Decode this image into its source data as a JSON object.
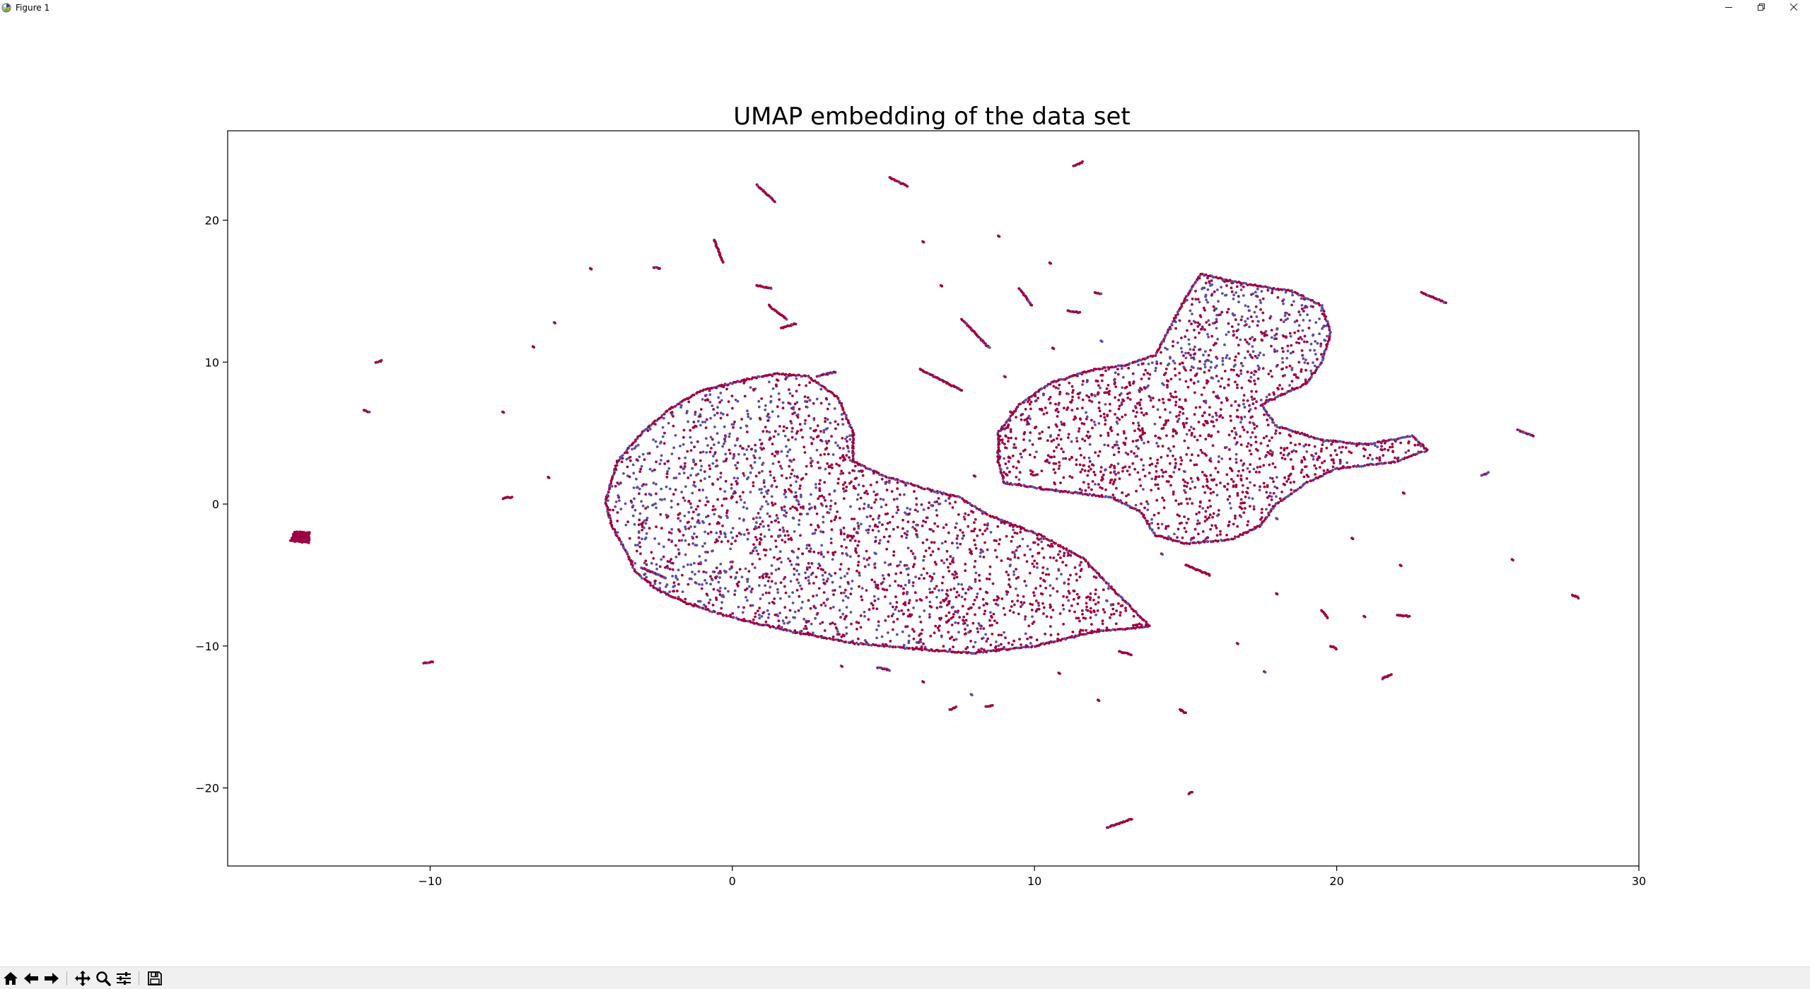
{
  "window": {
    "title": "Figure 1",
    "icons": {
      "app": "matplotlib-icon",
      "minimize": "minimize-icon",
      "restore": "restore-icon",
      "close": "close-icon"
    }
  },
  "toolbar": {
    "tools": [
      {
        "name": "home",
        "icon": "home-icon"
      },
      {
        "name": "back",
        "icon": "arrow-left-icon"
      },
      {
        "name": "forward",
        "icon": "arrow-right-icon"
      },
      {
        "name": "pan",
        "icon": "move-icon"
      },
      {
        "name": "zoom",
        "icon": "magnifier-icon"
      },
      {
        "name": "configure-subplots",
        "icon": "sliders-icon"
      },
      {
        "name": "save",
        "icon": "floppy-disk-icon"
      }
    ]
  },
  "chart_data": {
    "type": "scatter",
    "title": "UMAP embedding of the data set",
    "xlabel": "",
    "ylabel": "",
    "xlim": [
      -16.7,
      30
    ],
    "ylim": [
      -25.5,
      26.3
    ],
    "xticks": [
      -10,
      0,
      10,
      20,
      30
    ],
    "yticks": [
      -20,
      -10,
      0,
      10,
      20
    ],
    "xtick_labels": [
      "−10",
      "0",
      "10",
      "20",
      "30"
    ],
    "ytick_labels": [
      "−20",
      "−10",
      "0",
      "10",
      "20"
    ],
    "grid": false,
    "legend": "none",
    "colors": {
      "class_a": "#9e0142",
      "class_b": "#5e4fa2"
    },
    "clusters": [
      {
        "name": "left-crescent",
        "color_mix": 0.72,
        "points": [
          [
            -4.2,
            0.2
          ],
          [
            -3.8,
            3.0
          ],
          [
            -3.0,
            5.0
          ],
          [
            -2.0,
            6.8
          ],
          [
            -1.0,
            8.0
          ],
          [
            0.5,
            8.8
          ],
          [
            1.5,
            9.2
          ],
          [
            2.5,
            9.0
          ],
          [
            3.5,
            7.5
          ],
          [
            4.0,
            5.0
          ],
          [
            4.0,
            3.0
          ],
          [
            5.0,
            2.0
          ],
          [
            6.5,
            1.0
          ],
          [
            7.5,
            0.5
          ],
          [
            8.5,
            -0.8
          ],
          [
            10.2,
            -2.2
          ],
          [
            11.6,
            -3.8
          ],
          [
            12.6,
            -6.0
          ],
          [
            13.8,
            -8.6
          ],
          [
            12.0,
            -9.0
          ],
          [
            10.0,
            -10.0
          ],
          [
            8.0,
            -10.5
          ],
          [
            6.0,
            -10.2
          ],
          [
            4.0,
            -9.8
          ],
          [
            2.0,
            -9.0
          ],
          [
            0.0,
            -8.0
          ],
          [
            -1.5,
            -7.0
          ],
          [
            -2.5,
            -6.0
          ],
          [
            -3.2,
            -4.8
          ],
          [
            -3.6,
            -3.0
          ],
          [
            -4.0,
            -1.5
          ]
        ],
        "fill_density": 0.00034
      },
      {
        "name": "right-cluster",
        "color_mix": 0.62,
        "points": [
          [
            8.8,
            5.0
          ],
          [
            9.5,
            7.0
          ],
          [
            10.5,
            8.5
          ],
          [
            12.0,
            9.5
          ],
          [
            13.0,
            9.8
          ],
          [
            14.0,
            10.5
          ],
          [
            14.5,
            12.5
          ],
          [
            15.0,
            14.5
          ],
          [
            15.5,
            16.2
          ],
          [
            17.0,
            15.5
          ],
          [
            18.5,
            15.0
          ],
          [
            19.5,
            14.0
          ],
          [
            19.8,
            12.0
          ],
          [
            19.5,
            10.0
          ],
          [
            19.0,
            8.5
          ],
          [
            17.5,
            7.0
          ],
          [
            18.0,
            5.5
          ],
          [
            19.5,
            4.5
          ],
          [
            21.0,
            4.2
          ],
          [
            22.5,
            4.8
          ],
          [
            23.0,
            3.8
          ],
          [
            22.0,
            3.0
          ],
          [
            20.0,
            2.5
          ],
          [
            19.0,
            1.5
          ],
          [
            18.0,
            0.0
          ],
          [
            17.5,
            -1.5
          ],
          [
            16.5,
            -2.5
          ],
          [
            15.0,
            -2.8
          ],
          [
            14.0,
            -2.2
          ],
          [
            13.5,
            -0.5
          ],
          [
            12.5,
            0.5
          ],
          [
            10.5,
            1.0
          ],
          [
            9.0,
            1.5
          ],
          [
            8.8,
            3.0
          ]
        ],
        "fill_density": 0.00036
      },
      {
        "name": "far-left-blob",
        "color_mix": 0.95,
        "points": [
          [
            -14.5,
            -2.0
          ],
          [
            -14.0,
            -2.0
          ],
          [
            -14.0,
            -2.7
          ],
          [
            -14.6,
            -2.6
          ]
        ],
        "fill_density": 0.02
      }
    ],
    "outlier_segments": [
      [
        [
          0.8,
          22.5
        ],
        [
          1.4,
          21.3
        ],
        0.9
      ],
      [
        [
          5.2,
          23.0
        ],
        [
          5.8,
          22.4
        ],
        0.9
      ],
      [
        [
          11.3,
          23.8
        ],
        [
          11.6,
          24.1
        ],
        0.9
      ],
      [
        [
          -0.6,
          18.6
        ],
        [
          -0.3,
          17.0
        ],
        0.9
      ],
      [
        [
          0.8,
          15.4
        ],
        [
          1.3,
          15.2
        ],
        0.9
      ],
      [
        [
          1.2,
          14.0
        ],
        [
          1.8,
          13.0
        ],
        0.9
      ],
      [
        [
          1.6,
          12.4
        ],
        [
          2.1,
          12.7
        ],
        0.9
      ],
      [
        [
          -2.6,
          16.7
        ],
        [
          -2.4,
          16.6
        ],
        0.9
      ],
      [
        [
          6.2,
          9.5
        ],
        [
          7.6,
          8.0
        ],
        0.8
      ],
      [
        [
          7.6,
          13.0
        ],
        [
          8.5,
          11.0
        ],
        0.8
      ],
      [
        [
          9.5,
          15.2
        ],
        [
          9.9,
          14.0
        ],
        0.8
      ],
      [
        [
          11.1,
          13.6
        ],
        [
          11.5,
          13.5
        ],
        0.9
      ],
      [
        [
          12.0,
          14.9
        ],
        [
          12.2,
          14.8
        ],
        0.9
      ],
      [
        [
          22.8,
          14.9
        ],
        [
          23.6,
          14.2
        ],
        0.9
      ],
      [
        [
          26.0,
          5.2
        ],
        [
          26.5,
          4.8
        ],
        0.5
      ],
      [
        [
          24.8,
          2.0
        ],
        [
          25.0,
          2.2
        ],
        0.5
      ],
      [
        [
          15.0,
          -4.3
        ],
        [
          15.8,
          -5.0
        ],
        0.95
      ],
      [
        [
          -12.2,
          6.6
        ],
        [
          -12.0,
          6.5
        ],
        0.95
      ],
      [
        [
          -11.8,
          10.0
        ],
        [
          -11.6,
          10.1
        ],
        0.95
      ],
      [
        [
          -7.6,
          0.4
        ],
        [
          -7.3,
          0.5
        ],
        0.95
      ],
      [
        [
          -10.2,
          -11.2
        ],
        [
          -9.9,
          -11.1
        ],
        0.95
      ],
      [
        [
          12.4,
          -22.8
        ],
        [
          13.2,
          -22.2
        ],
        0.95
      ],
      [
        [
          14.8,
          -14.5
        ],
        [
          15.0,
          -14.7
        ],
        0.95
      ],
      [
        [
          15.1,
          -20.4
        ],
        [
          15.2,
          -20.3
        ],
        0.95
      ],
      [
        [
          7.2,
          -14.5
        ],
        [
          7.4,
          -14.3
        ],
        0.95
      ],
      [
        [
          8.4,
          -14.3
        ],
        [
          8.6,
          -14.2
        ],
        0.95
      ],
      [
        [
          12.8,
          -10.4
        ],
        [
          13.2,
          -10.6
        ],
        0.95
      ],
      [
        [
          21.5,
          -12.3
        ],
        [
          21.8,
          -12.0
        ],
        0.95
      ],
      [
        [
          22.0,
          -7.8
        ],
        [
          22.4,
          -7.9
        ],
        0.95
      ],
      [
        [
          19.5,
          -7.5
        ],
        [
          19.7,
          -8.0
        ],
        0.95
      ],
      [
        [
          19.8,
          -10.0
        ],
        [
          20.0,
          -10.2
        ],
        0.95
      ],
      [
        [
          27.8,
          -6.4
        ],
        [
          28.0,
          -6.6
        ],
        0.95
      ],
      [
        [
          4.8,
          -11.5
        ],
        [
          5.2,
          -11.7
        ],
        0.6
      ],
      [
        [
          -3.0,
          -4.5
        ],
        [
          -2.2,
          -5.2
        ],
        0.5
      ],
      [
        [
          2.8,
          9.0
        ],
        [
          3.4,
          9.3
        ],
        0.6
      ]
    ],
    "outlier_points": [
      [
        -4.7,
        16.6
      ],
      [
        -5.9,
        12.8
      ],
      [
        -6.6,
        11.1
      ],
      [
        -7.6,
        6.5
      ],
      [
        -6.1,
        1.9
      ],
      [
        6.3,
        18.5
      ],
      [
        8.8,
        18.9
      ],
      [
        6.9,
        15.4
      ],
      [
        9.0,
        9.0
      ],
      [
        10.6,
        11.0
      ],
      [
        12.2,
        11.5
      ],
      [
        10.5,
        17.0
      ],
      [
        18.0,
        -1.0
      ],
      [
        22.2,
        0.8
      ],
      [
        22.1,
        -4.3
      ],
      [
        25.8,
        -3.9
      ],
      [
        20.5,
        -2.4
      ],
      [
        18.0,
        -6.3
      ],
      [
        17.6,
        -11.8
      ],
      [
        12.1,
        -13.8
      ],
      [
        10.8,
        -11.9
      ],
      [
        6.3,
        -12.5
      ],
      [
        3.6,
        -11.4
      ],
      [
        7.9,
        -13.4
      ],
      [
        8.4,
        -6.2
      ],
      [
        9.2,
        6.5
      ],
      [
        8.0,
        2.0
      ],
      [
        14.2,
        -3.5
      ],
      [
        16.7,
        -9.8
      ],
      [
        20.9,
        -7.9
      ]
    ]
  }
}
